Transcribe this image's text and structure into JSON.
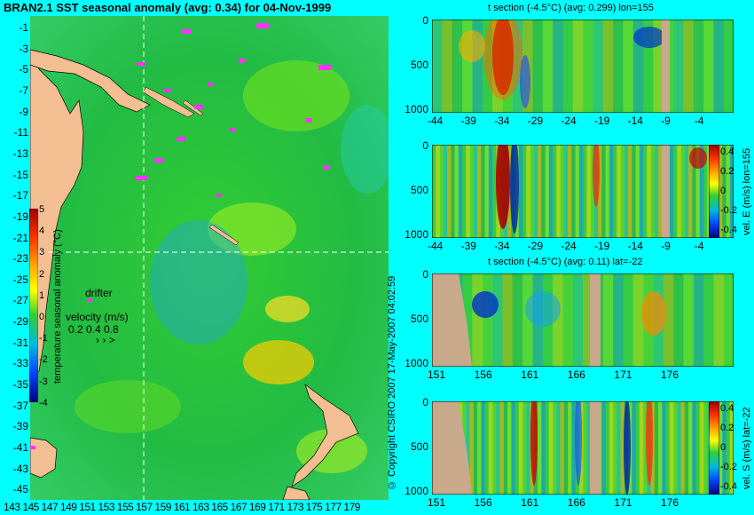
{
  "map": {
    "title": "BRAN2.1 SST seasonal anomaly (avg: 0.34) for 04-Nov-1999",
    "lat_ticks": [
      "-1",
      "-3",
      "-5",
      "-7",
      "-9",
      "-11",
      "-13",
      "-15",
      "-17",
      "-19",
      "-21",
      "-23",
      "-25",
      "-27",
      "-29",
      "-31",
      "-33",
      "-35",
      "-37",
      "-39",
      "-41",
      "-43",
      "-45"
    ],
    "lon_ticks": [
      "143",
      "145",
      "147",
      "149",
      "151",
      "153",
      "155",
      "157",
      "159",
      "161",
      "163",
      "165",
      "167",
      "169",
      "171",
      "173",
      "175",
      "177",
      "179"
    ],
    "colorbar": {
      "label": "temperature seasonal anomaly (°C)",
      "ticks": [
        "5",
        "4",
        "3",
        "2",
        "1",
        "0",
        "-1",
        "-2",
        "-3",
        "-4"
      ]
    },
    "drifter_label": "drifter",
    "velocity": {
      "label": "velocity (m/s)",
      "scale": "0.2 0.4 0.8",
      "arrows": "› › >"
    },
    "copyright": "© Copyright CSIRO 2007  17-May-2007 04:02:59",
    "colors": {
      "land": "#f3be92",
      "drifter": "#ff33ff",
      "background": "#00ffff"
    }
  },
  "sections": [
    {
      "title": "t section (-4.5°C) (avg: 0.299) lon=155",
      "x_ticks": [
        "-44",
        "-39",
        "-34",
        "-29",
        "-24",
        "-19",
        "-14",
        "-9",
        "-4"
      ],
      "y_ticks": [
        "0",
        "500",
        "1000"
      ],
      "colorbar_ticks": [],
      "colorbar_label": ""
    },
    {
      "title": "",
      "x_ticks": [
        "-44",
        "-39",
        "-34",
        "-29",
        "-24",
        "-19",
        "-14",
        "-9",
        "-4"
      ],
      "y_ticks": [
        "0",
        "500",
        "1000"
      ],
      "colorbar_ticks": [
        "0.4",
        "0.2",
        "0",
        "-0.2",
        "-0.4"
      ],
      "colorbar_label": "vel. E (m/s) lon=155"
    },
    {
      "title": "t section (-4.5°C) (avg: 0.11) lat=-22",
      "x_ticks": [
        "151",
        "156",
        "161",
        "166",
        "171",
        "176"
      ],
      "y_ticks": [
        "0",
        "500",
        "1000"
      ],
      "colorbar_ticks": [],
      "colorbar_label": ""
    },
    {
      "title": "",
      "x_ticks": [
        "151",
        "156",
        "161",
        "166",
        "171",
        "176"
      ],
      "y_ticks": [
        "0",
        "500",
        "1000"
      ],
      "colorbar_ticks": [
        "0.4",
        "0.2",
        "0",
        "-0.2",
        "-0.4"
      ],
      "colorbar_label": "vel. S (m/s) lat=-22"
    }
  ]
}
